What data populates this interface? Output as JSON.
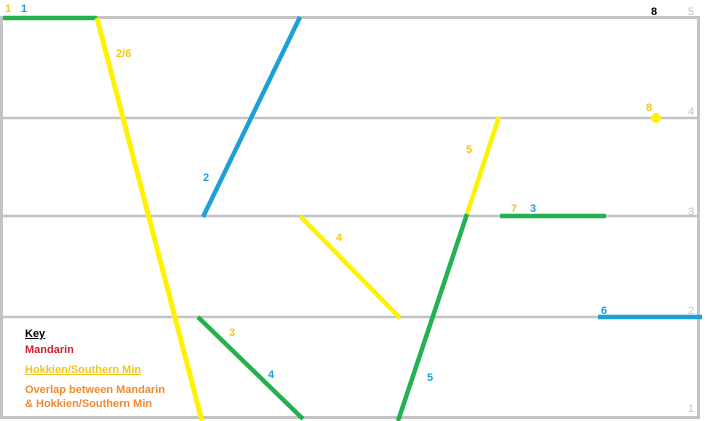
{
  "colors": {
    "mandarin": "#cc1f2f",
    "hokkien": "#fff200",
    "overlap": "#f08a32",
    "green": "#22b14c",
    "blue": "#1d9fd8",
    "grid": "#c3c3c3",
    "label_yellow": "#f5c518",
    "label_blue": "#1d9fd8",
    "black": "#000000"
  },
  "levels": [
    "1",
    "2",
    "3",
    "4",
    "5"
  ],
  "labels": [
    {
      "id": "l1y",
      "text": "1",
      "color": "label_yellow"
    },
    {
      "id": "l1b",
      "text": "1",
      "color": "label_blue"
    },
    {
      "id": "l26",
      "text": "2/6",
      "color": "label_yellow"
    },
    {
      "id": "l8top",
      "text": "8",
      "color": "black"
    },
    {
      "id": "l2b",
      "text": "2",
      "color": "label_blue"
    },
    {
      "id": "l8y",
      "text": "8",
      "color": "label_yellow"
    },
    {
      "id": "l5y",
      "text": "5",
      "color": "label_yellow"
    },
    {
      "id": "l7y",
      "text": "7",
      "color": "label_yellow"
    },
    {
      "id": "l3b",
      "text": "3",
      "color": "label_blue"
    },
    {
      "id": "l4y",
      "text": "4",
      "color": "label_yellow"
    },
    {
      "id": "l6b",
      "text": "6",
      "color": "label_blue"
    },
    {
      "id": "l3y",
      "text": "3",
      "color": "label_yellow"
    },
    {
      "id": "l4b",
      "text": "4",
      "color": "label_blue"
    },
    {
      "id": "l5b",
      "text": "5",
      "color": "label_blue"
    }
  ],
  "key": {
    "title": "Key",
    "mandarin": "Mandarin",
    "hokkien": "Hokkien/Southern Min",
    "overlap_line1": "Overlap between Mandarin",
    "overlap_line2": "& Hokkien/Southern Min"
  }
}
